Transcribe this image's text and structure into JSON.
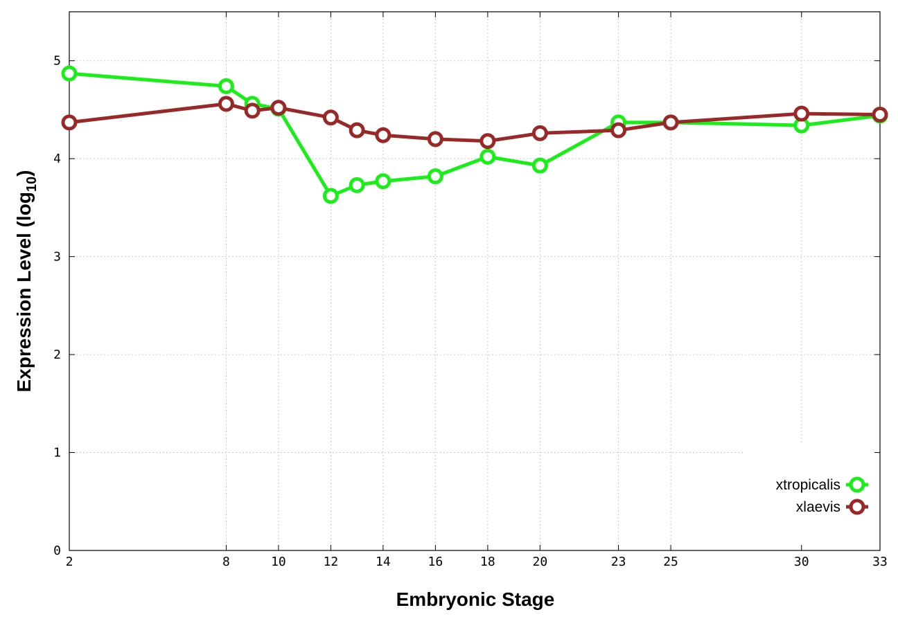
{
  "chart_data": {
    "type": "line",
    "xlabel": "Embryonic Stage",
    "ylabel_main": "Expression Level (log",
    "ylabel_sub": "10",
    "ylabel_close": ")",
    "xlim": [
      2,
      33
    ],
    "ylim": [
      0,
      5.5
    ],
    "x_ticks": [
      2,
      8,
      10,
      12,
      14,
      16,
      18,
      20,
      23,
      25,
      30,
      33
    ],
    "y_ticks": [
      0,
      1,
      2,
      3,
      4,
      5
    ],
    "grid": true,
    "legend_position": "bottom-right",
    "series": [
      {
        "name": "xtropicalis",
        "color": "#19ee19",
        "x": [
          2,
          8,
          9,
          10,
          12,
          13,
          14,
          16,
          18,
          20,
          23,
          25,
          30,
          33
        ],
        "y": [
          4.87,
          4.74,
          4.56,
          4.51,
          3.62,
          3.73,
          3.77,
          3.82,
          4.02,
          3.93,
          4.37,
          4.37,
          4.34,
          4.44
        ]
      },
      {
        "name": "xlaevis",
        "color": "#992929",
        "x": [
          2,
          8,
          9,
          10,
          12,
          13,
          14,
          16,
          18,
          20,
          23,
          25,
          30,
          33
        ],
        "y": [
          4.37,
          4.56,
          4.49,
          4.52,
          4.42,
          4.29,
          4.24,
          4.2,
          4.18,
          4.26,
          4.29,
          4.37,
          4.46,
          4.45
        ]
      }
    ]
  }
}
